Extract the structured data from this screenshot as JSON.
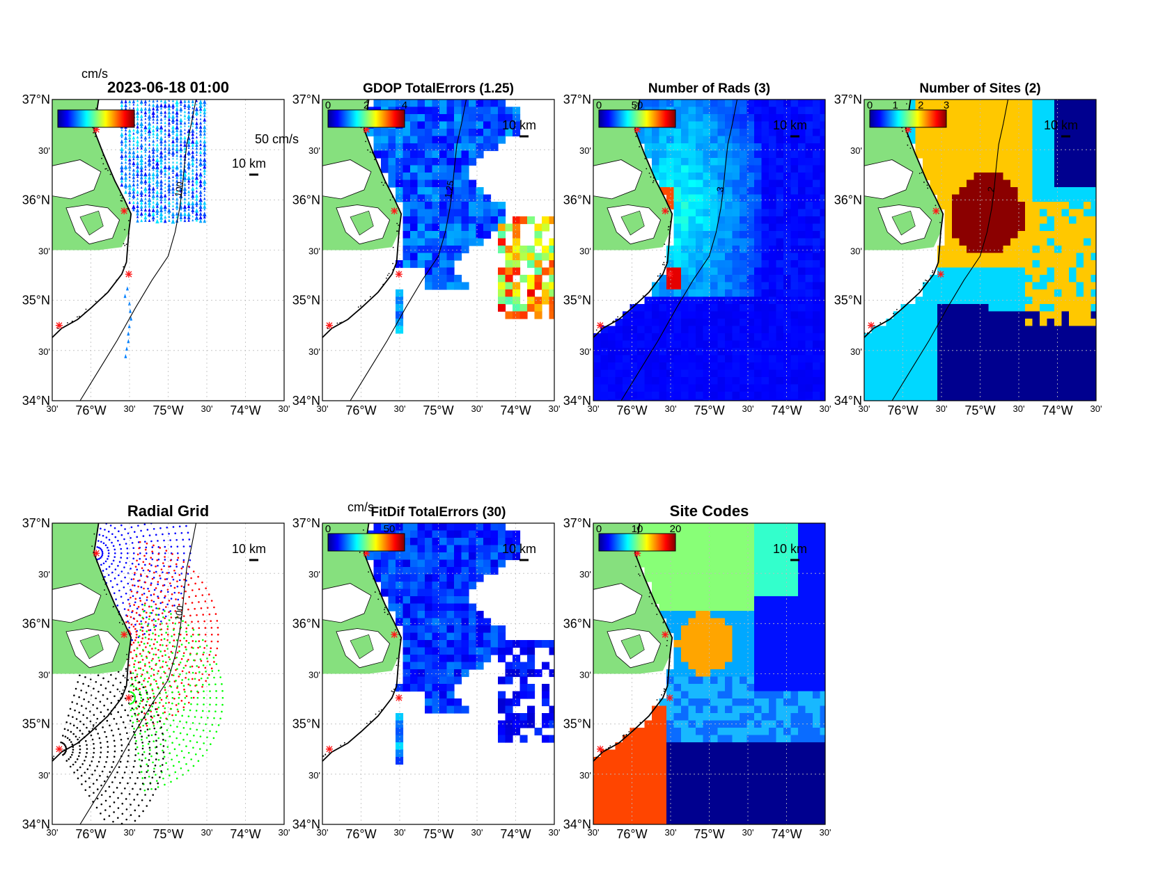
{
  "colors": {
    "land": "#86e07e",
    "coast": "#000000",
    "site_marker": "#ff1a1a",
    "grid": "#bdbdbd"
  },
  "axes": {
    "lat_labels": [
      "37°N",
      "30'",
      "36°N",
      "30'",
      "35°N",
      "30'",
      "34°N"
    ],
    "lon_labels": [
      "30'",
      "76°W",
      "30'",
      "75°W",
      "30'",
      "74°W",
      "30'"
    ],
    "lon_range": [
      -76.5,
      -73.5
    ],
    "lat_range": [
      34.0,
      37.0
    ]
  },
  "panels": [
    {
      "id": "vectors",
      "title": "2023-06-18 01:00",
      "unit": "cm/s",
      "colorbar_ticks": [],
      "scale_bar": "10 km",
      "vector_scale": "50 cm/s",
      "contour_label": "100"
    },
    {
      "id": "gdop",
      "title": "GDOP TotalErrors (1.25)",
      "unit": "",
      "colorbar_ticks": [
        "0",
        "2",
        "4"
      ],
      "scale_bar": "10 km",
      "contour_label": "1.25"
    },
    {
      "id": "nrads",
      "title": "Number of Rads (3)",
      "unit": "",
      "colorbar_ticks": [
        "0",
        "50"
      ],
      "scale_bar": "10 km",
      "contour_label": "3"
    },
    {
      "id": "nsites",
      "title": "Number of Sites (2)",
      "unit": "",
      "colorbar_ticks": [
        "0",
        "1",
        "2",
        "3"
      ],
      "scale_bar": "10 km",
      "contour_label": "2"
    },
    {
      "id": "radgrid",
      "title": "Radial Grid",
      "unit": "",
      "colorbar_ticks": [],
      "scale_bar": "10 km",
      "contour_label": "100"
    },
    {
      "id": "fitdif",
      "title": "FitDif TotalErrors (30)",
      "unit": "cm/s",
      "colorbar_ticks": [
        "0",
        "50"
      ],
      "scale_bar": "10 km",
      "contour_label": ""
    },
    {
      "id": "sitecodes",
      "title": "Site Codes",
      "unit": "",
      "colorbar_ticks": [
        "0",
        "10",
        "20"
      ],
      "scale_bar": "10 km",
      "contour_label": ""
    }
  ]
}
